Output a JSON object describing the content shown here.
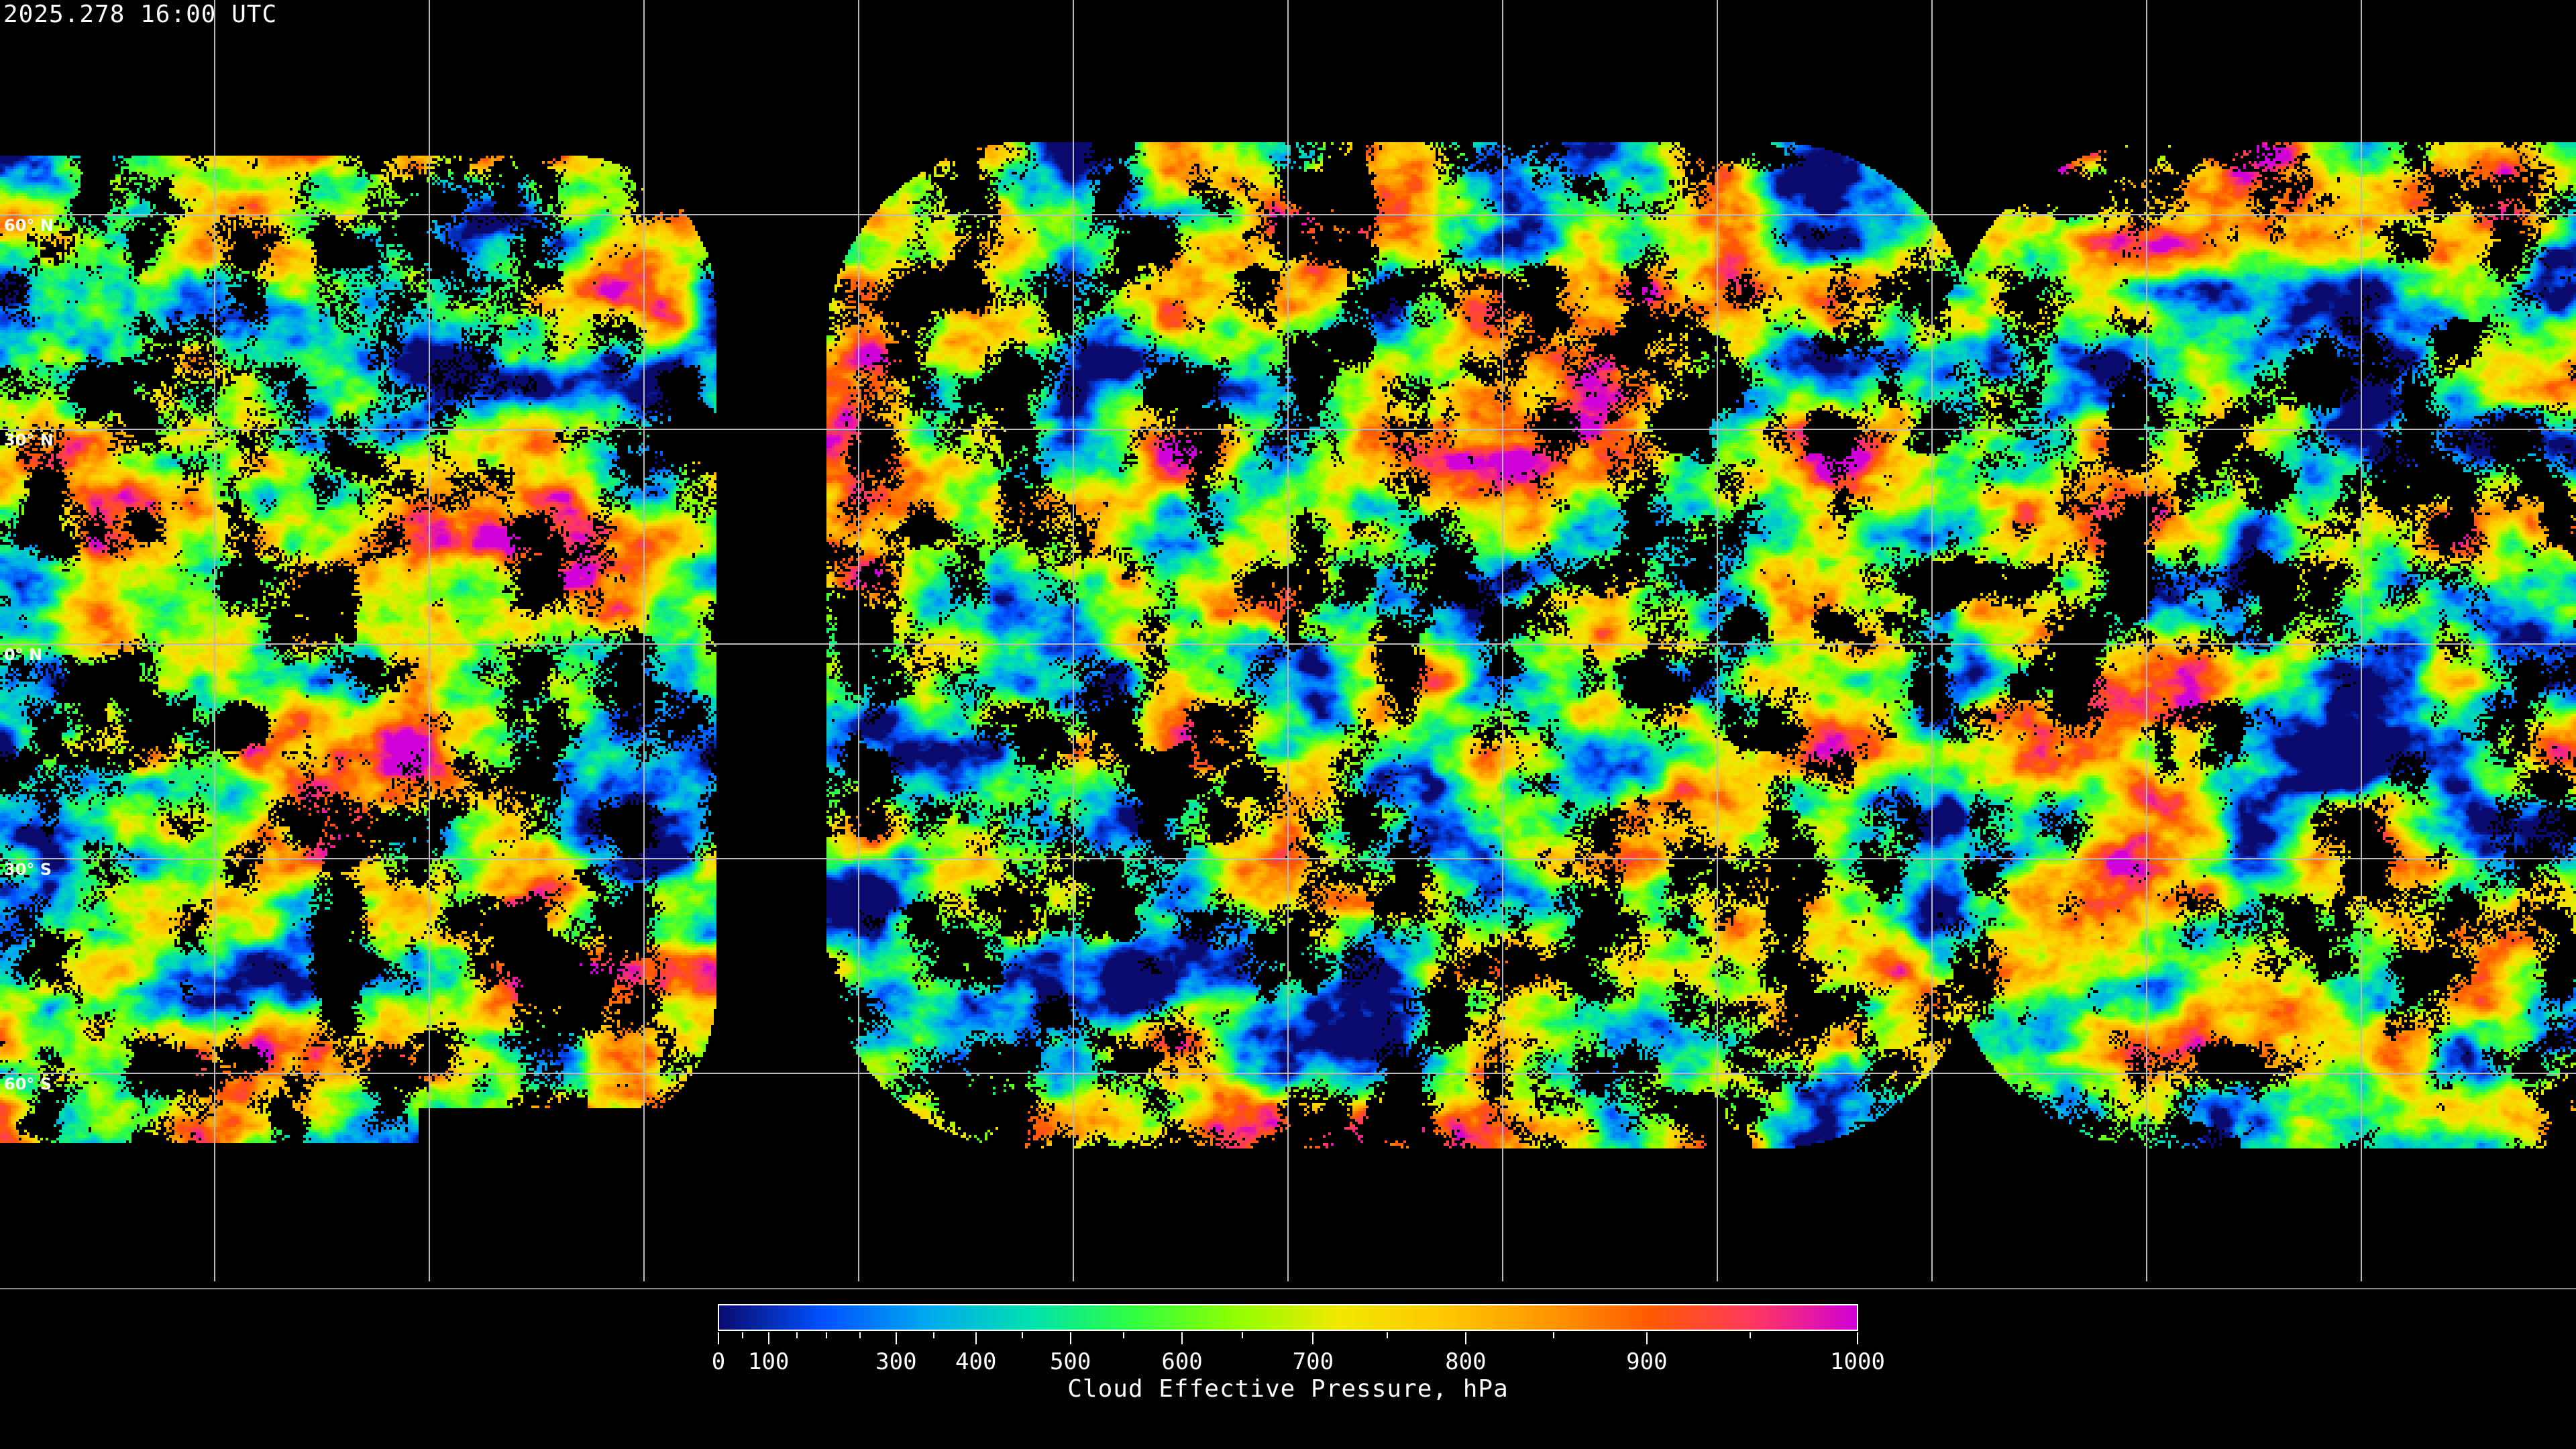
{
  "header": {
    "timestamp": "2025.278 16:00 UTC"
  },
  "map": {
    "projection": "equirectangular",
    "gridlines": true,
    "latitude_labels": [
      "60° N",
      "30° N",
      "0° N",
      "30° S",
      "60° S"
    ],
    "coastline_color": "#ffffff",
    "no_data_color": "#000000"
  },
  "colorbar": {
    "title": "Cloud Effective Pressure, hPa",
    "tick_labels": [
      "0",
      "100",
      "300",
      "400",
      "500",
      "600",
      "700",
      "800",
      "900",
      "1000"
    ],
    "minor_ticks": [
      50,
      150,
      200,
      250,
      350,
      450,
      550,
      650,
      750,
      850,
      950
    ],
    "range": [
      0,
      1000
    ],
    "colormap": [
      "#0a0a6e",
      "#0050ff",
      "#00a8f0",
      "#00e0b0",
      "#30ff40",
      "#90ff00",
      "#f0e800",
      "#ffc800",
      "#ff9800",
      "#ff5a00",
      "#ff3860",
      "#d000d8"
    ]
  }
}
